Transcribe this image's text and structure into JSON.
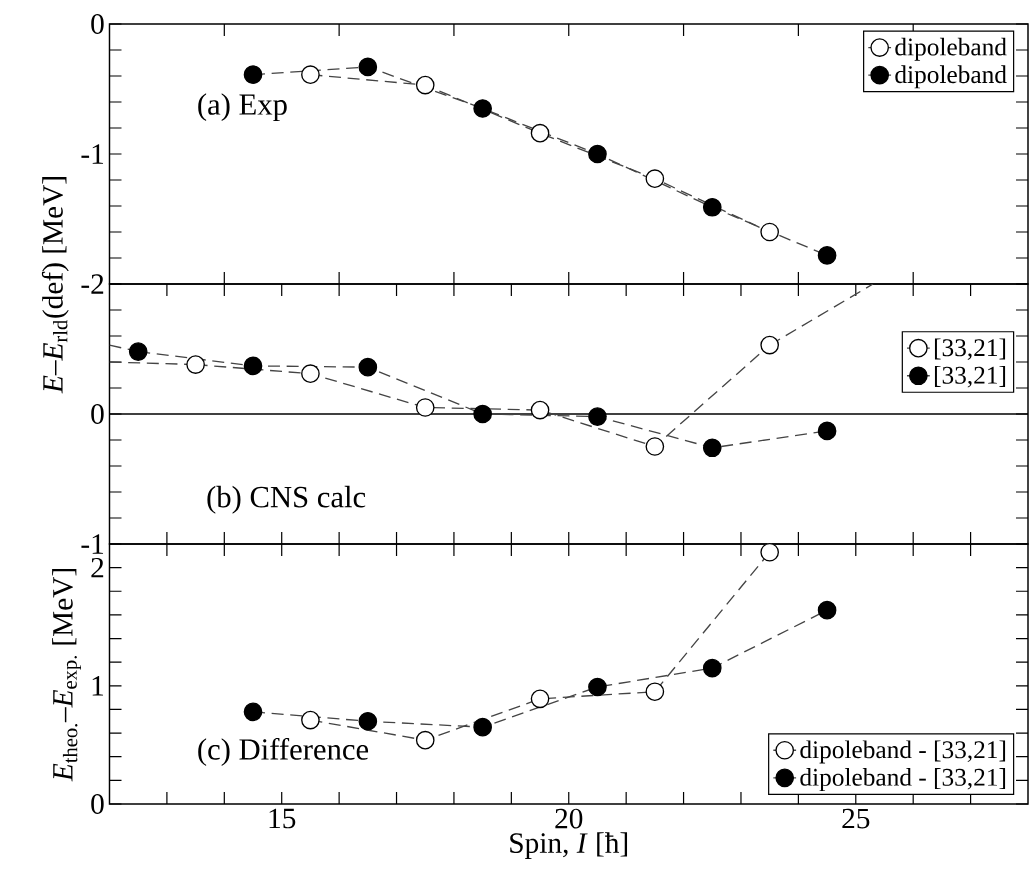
{
  "chart_data": [
    {
      "type": "line",
      "ylabel": "*E*–*E*$_{rld}$(def) [MeV]",
      "annotations": [
        "(a) Exp"
      ],
      "xlim": [
        12,
        28
      ],
      "ylim": [
        -2,
        0
      ],
      "xticks": [
        14,
        16,
        18,
        20,
        22,
        24,
        26
      ],
      "yticks": [
        -2,
        {
          "value": -1.8,
          "label": null
        },
        {
          "value": -1.6,
          "label": null
        },
        {
          "value": -1.4,
          "label": null
        },
        {
          "value": -1.2,
          "label": null
        },
        -1,
        {
          "value": -0.8,
          "label": null
        },
        {
          "value": -0.6,
          "label": null
        },
        {
          "value": -0.4,
          "label": null
        },
        {
          "value": -0.2,
          "label": null
        },
        0
      ],
      "tick_labels": "y",
      "legend": "top right",
      "marker": "circle",
      "line_style": "dashed",
      "series": [
        {
          "name": "dipoleband",
          "color": "#ffffff",
          "x": [
            15.5,
            17.5,
            19.5,
            21.5,
            23.5
          ],
          "values": [
            -0.39,
            -0.47,
            -0.84,
            -1.19,
            -1.6
          ]
        },
        {
          "name": "dipoleband",
          "color": "#000000",
          "x": [
            14.5,
            16.5,
            18.5,
            20.5,
            22.5,
            24.5
          ],
          "values": [
            -0.39,
            -0.33,
            -0.65,
            -1.0,
            -1.41,
            -1.78
          ]
        }
      ]
    },
    {
      "type": "line",
      "annotations": [
        "(b) CNS calc"
      ],
      "xlim": [
        12,
        28
      ],
      "ylim": [
        -1,
        1
      ],
      "xticks": [
        13,
        14,
        15,
        16,
        17,
        18,
        19,
        20,
        21,
        22,
        23,
        24,
        25,
        26,
        27
      ],
      "yticks": [
        -1,
        {
          "value": -0.8,
          "label": null
        },
        {
          "value": -0.6,
          "label": null
        },
        {
          "value": -0.4,
          "label": null
        },
        {
          "value": -0.2,
          "label": null
        },
        0,
        {
          "value": 0.2,
          "label": null
        },
        {
          "value": 0.4,
          "label": null
        },
        {
          "value": 0.6,
          "label": null
        },
        {
          "value": 0.8,
          "label": null
        },
        {
          "value": 1,
          "label": null
        }
      ],
      "tick_labels": "y",
      "legend": "right",
      "marker": "circle",
      "line_style": "dashed",
      "ref_lines": [
        {
          "axis": "y",
          "value": 0,
          "color": "#000000",
          "line_style": "solid"
        }
      ],
      "series": [
        {
          "name": "[33,21]",
          "color": "#ffffff",
          "x": [
            13.5,
            15.5,
            17.5,
            19.5,
            21.5,
            23.5
          ],
          "values": [
            0.38,
            0.31,
            0.05,
            0.03,
            -0.25,
            0.53
          ]
        },
        {
          "name": "[33,21]",
          "color": "#000000",
          "x": [
            12.5,
            14.5,
            16.5,
            18.5,
            20.5,
            22.5,
            24.5
          ],
          "values": [
            0.48,
            0.37,
            0.36,
            0.0,
            -0.02,
            -0.26,
            -0.13
          ]
        },
        {
          "type": "line",
          "marker": "none",
          "color": "#444444",
          "x": [
            12,
            13.5
          ],
          "values": [
            0.4,
            0.38
          ]
        },
        {
          "type": "line",
          "marker": "none",
          "color": "#444444",
          "x": [
            12,
            12.5
          ],
          "values": [
            0.53,
            0.48
          ]
        },
        {
          "type": "line",
          "marker": "none",
          "color": "#444444",
          "x": [
            23.5,
            25.3
          ],
          "values": [
            0.53,
            1.0
          ]
        }
      ]
    },
    {
      "type": "line",
      "xlabel": "Spin, *I* [ħ]",
      "ylabel": "*E*$_{theo.}$–*E*$_{exp.}$ [MeV]",
      "annotations": [
        "(c) Difference"
      ],
      "xlim": [
        12,
        28
      ],
      "ylim": [
        0,
        2.2
      ],
      "xticks": [
        {
          "value": 13,
          "label": null
        },
        {
          "value": 14,
          "label": null
        },
        15,
        {
          "value": 16,
          "label": null
        },
        {
          "value": 17,
          "label": null
        },
        {
          "value": 18,
          "label": null
        },
        {
          "value": 19,
          "label": null
        },
        20,
        {
          "value": 21,
          "label": null
        },
        {
          "value": 22,
          "label": null
        },
        {
          "value": 23,
          "label": null
        },
        {
          "value": 24,
          "label": null
        },
        25,
        {
          "value": 26,
          "label": null
        },
        {
          "value": 27,
          "label": null
        }
      ],
      "yticks": [
        0,
        {
          "value": 0.2,
          "label": null
        },
        {
          "value": 0.4,
          "label": null
        },
        {
          "value": 0.6,
          "label": null
        },
        {
          "value": 0.8,
          "label": null
        },
        1,
        {
          "value": 1.2,
          "label": null
        },
        {
          "value": 1.4,
          "label": null
        },
        {
          "value": 1.6,
          "label": null
        },
        {
          "value": 1.8,
          "label": null
        },
        2
      ],
      "legend": "bottom right",
      "marker": "circle",
      "line_style": "dashed",
      "series": [
        {
          "name": "dipoleband - [33,21]",
          "color": "#ffffff",
          "x": [
            15.5,
            17.5,
            19.5,
            21.5,
            23.5
          ],
          "values": [
            0.71,
            0.54,
            0.89,
            0.95,
            2.13
          ]
        },
        {
          "name": "dipoleband - [33,21]",
          "color": "#000000",
          "x": [
            14.5,
            16.5,
            18.5,
            20.5,
            22.5,
            24.5
          ],
          "values": [
            0.78,
            0.7,
            0.65,
            0.99,
            1.15,
            1.64
          ]
        }
      ]
    }
  ]
}
